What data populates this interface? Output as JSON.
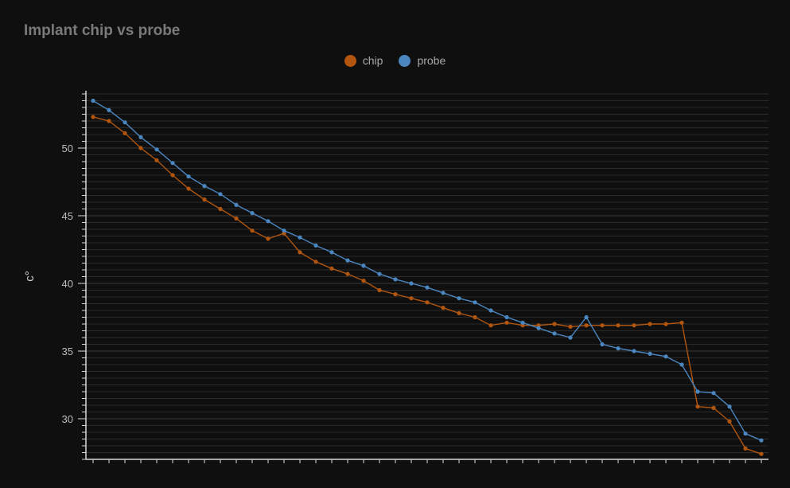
{
  "colors": {
    "background": "#0f0f0f",
    "grid": "#2a2a2a",
    "axis": "#d8d8d8",
    "chip": "#b2560f",
    "probe": "#4a86c0"
  },
  "chart_data": {
    "type": "line",
    "title": "Implant chip vs probe",
    "xlabel": "",
    "ylabel": "c°",
    "ylim": [
      27,
      54
    ],
    "yticks": [
      30,
      35,
      40,
      45,
      50
    ],
    "ytick_labels": [
      "30",
      "35",
      "40",
      "45",
      "50"
    ],
    "grid": true,
    "legend_position": "top-center",
    "x": [
      1,
      2,
      3,
      4,
      5,
      6,
      7,
      8,
      9,
      10,
      11,
      12,
      13,
      14,
      15,
      16,
      17,
      18,
      19,
      20,
      21,
      22,
      23,
      24,
      25,
      26,
      27,
      28,
      29,
      30,
      31,
      32,
      33,
      34,
      35,
      36,
      37,
      38,
      39,
      40,
      41,
      42,
      43
    ],
    "series": [
      {
        "name": "chip",
        "color": "#b2560f",
        "values": [
          52.3,
          52.0,
          51.1,
          50.0,
          49.1,
          48.0,
          47.0,
          46.2,
          45.5,
          44.8,
          43.9,
          43.3,
          43.7,
          42.3,
          41.6,
          41.1,
          40.7,
          40.2,
          39.5,
          39.2,
          38.9,
          38.6,
          38.2,
          37.8,
          37.5,
          36.9,
          37.1,
          36.9,
          36.9,
          37.0,
          36.8,
          36.9,
          36.9,
          36.9,
          36.9,
          37.0,
          37.0,
          37.1,
          30.9,
          30.8,
          29.8,
          27.8,
          27.4
        ]
      },
      {
        "name": "probe",
        "color": "#4a86c0",
        "values": [
          53.5,
          52.8,
          51.9,
          50.8,
          49.9,
          48.9,
          47.9,
          47.2,
          46.6,
          45.8,
          45.2,
          44.6,
          43.9,
          43.4,
          42.8,
          42.3,
          41.7,
          41.3,
          40.7,
          40.3,
          40.0,
          39.7,
          39.3,
          38.9,
          38.6,
          38.0,
          37.5,
          37.1,
          36.7,
          36.3,
          36.0,
          37.5,
          35.5,
          35.2,
          35.0,
          34.8,
          34.6,
          34.0,
          32.0,
          31.9,
          30.9,
          28.9,
          28.4
        ]
      }
    ]
  }
}
